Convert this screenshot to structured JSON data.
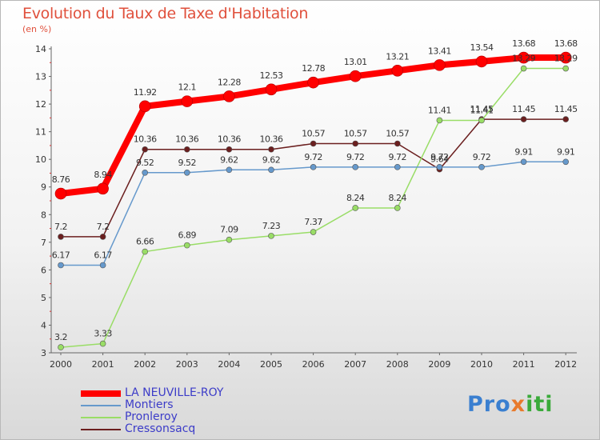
{
  "chart_data": {
    "type": "line",
    "title": "Evolution du Taux de Taxe d'Habitation",
    "subtitle": "(en %)",
    "xlabel": "",
    "ylabel": "",
    "x": [
      "2000",
      "2001",
      "2002",
      "2003",
      "2004",
      "2005",
      "2006",
      "2007",
      "2008",
      "2009",
      "2010",
      "2011",
      "2012"
    ],
    "ylim": [
      3,
      14
    ],
    "yticks": [
      3,
      4,
      5,
      6,
      7,
      8,
      9,
      10,
      11,
      12,
      13,
      14
    ],
    "grid": false,
    "legend_position": "bottom-left",
    "series": [
      {
        "name": "Cressonsacq",
        "color": "#6b1f1f",
        "values": [
          7.2,
          7.2,
          10.36,
          10.36,
          10.36,
          10.36,
          10.57,
          10.57,
          10.57,
          9.64,
          11.45,
          11.45,
          11.45
        ],
        "labels": [
          "7.2",
          "7.2",
          "10.36",
          "10.36",
          "10.36",
          "10.36",
          "10.57",
          "10.57",
          "10.57",
          "9.64",
          "11.45",
          "11.45",
          "11.45"
        ]
      },
      {
        "name": "Pronleroy",
        "color": "#99dd66",
        "values": [
          3.2,
          3.33,
          6.66,
          6.89,
          7.09,
          7.23,
          7.37,
          8.24,
          8.24,
          11.41,
          11.41,
          13.29,
          13.29
        ],
        "labels": [
          "3.2",
          "3.33",
          "6.66",
          "6.89",
          "7.09",
          "7.23",
          "7.37",
          "8.24",
          "8.24",
          "11.41",
          "11.41",
          "13.29",
          "13.29"
        ]
      },
      {
        "name": "Montiers",
        "color": "#6699cc",
        "values": [
          6.17,
          6.17,
          9.52,
          9.52,
          9.62,
          9.62,
          9.72,
          9.72,
          9.72,
          9.72,
          9.72,
          9.91,
          9.91
        ],
        "labels": [
          "6.17",
          "6.17",
          "9.52",
          "9.52",
          "9.62",
          "9.62",
          "9.72",
          "9.72",
          "9.72",
          "9.72",
          "9.72",
          "9.91",
          "9.91"
        ]
      },
      {
        "name": "LA NEUVILLE-ROY",
        "color": "#ff0000",
        "values": [
          8.76,
          8.94,
          11.92,
          12.1,
          12.28,
          12.53,
          12.78,
          13.01,
          13.21,
          13.41,
          13.54,
          13.68,
          13.68
        ],
        "labels": [
          "8.76",
          "8.94",
          "11.92",
          "12.1",
          "12.28",
          "12.53",
          "12.78",
          "13.01",
          "13.21",
          "13.41",
          "13.54",
          "13.68",
          "13.68"
        ]
      }
    ]
  },
  "legend": [
    {
      "label": "LA NEUVILLE-ROY",
      "color": "#ff0000"
    },
    {
      "label": "Montiers",
      "color": "#6699cc"
    },
    {
      "label": "Pronleroy",
      "color": "#99dd66"
    },
    {
      "label": "Cressonsacq",
      "color": "#6b1f1f"
    }
  ],
  "logo": {
    "part1": "Pro",
    "part2": "x",
    "part3": "iti"
  }
}
